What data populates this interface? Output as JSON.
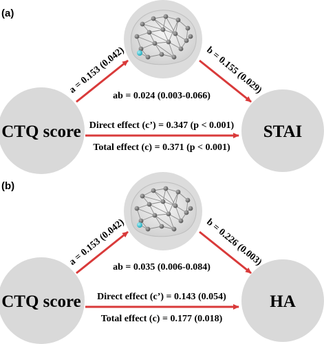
{
  "panels": [
    {
      "label": "(a)",
      "predictor": "CTQ score",
      "outcome": "STAI",
      "path_a": "a = 0.153 (0.042)",
      "path_b": "b = 0.155 (0.029)",
      "indirect": "ab = 0.024 (0.003-0.066)",
      "direct": "Direct effect (c’) = 0.347 (p < 0.001)",
      "total": "Total effect (c) = 0.371 (p < 0.001)"
    },
    {
      "label": "(b)",
      "predictor": "CTQ score",
      "outcome": "HA",
      "path_a": "a = 0.153 (0.042)",
      "path_b": "b = 0.226 (0.003)",
      "indirect": "ab = 0.035 (0.006-0.084)",
      "direct": "Direct effect (c’) = 0.143 (0.054)",
      "total": "Total effect (c) = 0.177 (0.018)"
    }
  ],
  "colors": {
    "node_fill": "#d9d9d9",
    "arrow": "#d93a3a",
    "network_node": "#6e6e6e",
    "network_highlight": "#33c4d6"
  },
  "icons": [
    "brain-network-icon"
  ]
}
